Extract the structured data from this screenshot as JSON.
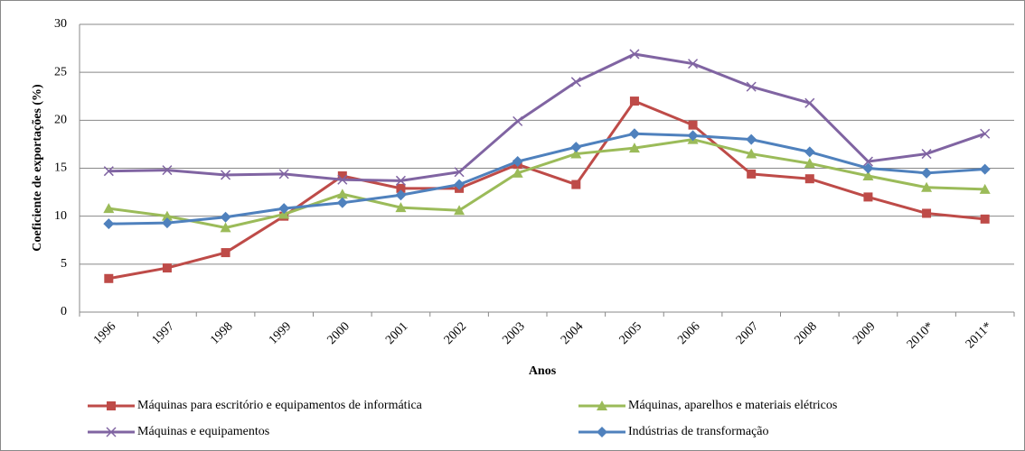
{
  "chart_data": {
    "type": "line",
    "x_label": "Anos",
    "y_label": "Coeficiente de exportações (%)",
    "categories": [
      "1996",
      "1997",
      "1998",
      "1999",
      "2000",
      "2001",
      "2002",
      "2003",
      "2004",
      "2005",
      "2006",
      "2007",
      "2008",
      "2009",
      "2010*",
      "2011*"
    ],
    "series": [
      {
        "name": "Máquinas para escritório e equipamentos de informática",
        "color": "#be4b48",
        "marker": "square",
        "values": [
          3.5,
          4.6,
          6.2,
          10.0,
          14.2,
          12.9,
          12.9,
          15.4,
          13.3,
          22.0,
          19.5,
          14.4,
          13.9,
          12.0,
          10.3,
          9.7
        ]
      },
      {
        "name": "Máquinas, aparelhos e materiais elétricos",
        "color": "#9bbb59",
        "marker": "triangle",
        "values": [
          10.8,
          10.0,
          8.8,
          10.2,
          12.3,
          10.9,
          10.6,
          14.5,
          16.5,
          17.1,
          18.0,
          16.5,
          15.5,
          14.2,
          13.0,
          12.8
        ]
      },
      {
        "name": "Máquinas e equipamentos",
        "color": "#8064a2",
        "marker": "x",
        "values": [
          14.7,
          14.8,
          14.3,
          14.4,
          13.8,
          13.7,
          14.6,
          19.9,
          24.0,
          26.9,
          25.9,
          23.5,
          21.8,
          15.7,
          16.5,
          18.6
        ]
      },
      {
        "name": "Indústrias de transformação",
        "color": "#4f81bd",
        "marker": "diamond",
        "values": [
          9.2,
          9.3,
          9.9,
          10.8,
          11.4,
          12.2,
          13.3,
          15.7,
          17.2,
          18.6,
          18.4,
          18.0,
          16.7,
          15.0,
          14.5,
          14.9
        ]
      }
    ],
    "ylim": [
      0,
      30
    ],
    "yticks": [
      0,
      5,
      10,
      15,
      20,
      25,
      30
    ],
    "grid": true,
    "legend": "bottom"
  }
}
